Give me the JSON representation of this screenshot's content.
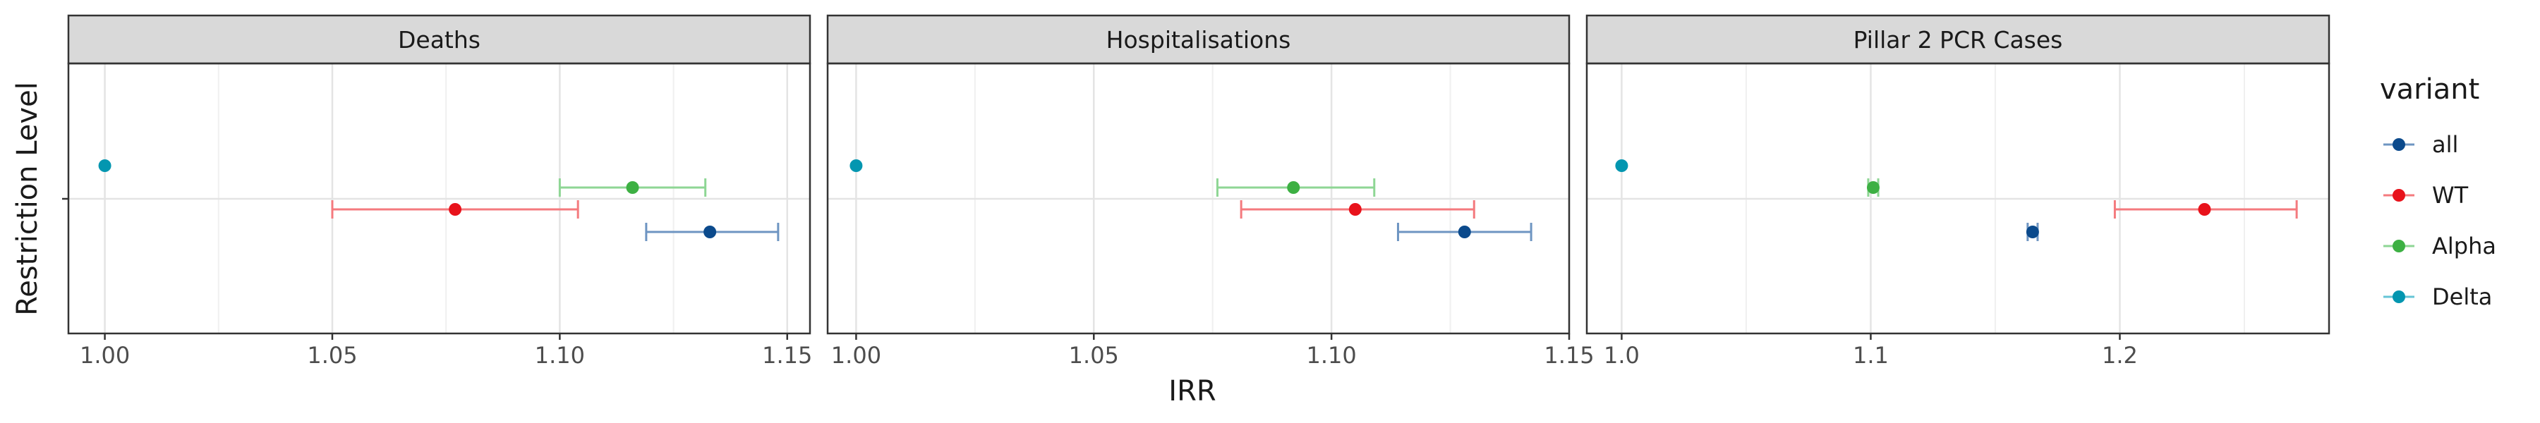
{
  "chart_data": {
    "type": "scatter",
    "subtype": "point-range-facets",
    "xlabel": "IRR",
    "ylabel": "Restriction Level",
    "grid": true,
    "legend": {
      "title": "variant",
      "placement": "right",
      "entries": [
        {
          "name": "all",
          "color": "#0B4A8C"
        },
        {
          "name": "WT",
          "color": "#E8121B"
        },
        {
          "name": "Alpha",
          "color": "#3DB043"
        },
        {
          "name": "Delta",
          "color": "#0396B0"
        }
      ]
    },
    "panels": [
      {
        "title": "Deaths",
        "xlim": [
          0.992,
          1.155
        ],
        "xticks": [
          1.0,
          1.05,
          1.1,
          1.15
        ],
        "xtick_labels": [
          "1.00",
          "1.05",
          "1.10",
          "1.15"
        ],
        "points": [
          {
            "variant": "Delta",
            "estimate": 1.0,
            "lower": 1.0,
            "upper": 1.0
          },
          {
            "variant": "Alpha",
            "estimate": 1.116,
            "lower": 1.1,
            "upper": 1.132
          },
          {
            "variant": "WT",
            "estimate": 1.077,
            "lower": 1.05,
            "upper": 1.104
          },
          {
            "variant": "all",
            "estimate": 1.133,
            "lower": 1.119,
            "upper": 1.148
          }
        ]
      },
      {
        "title": "Hospitalisations",
        "xlim": [
          0.994,
          1.15
        ],
        "xticks": [
          1.0,
          1.05,
          1.1,
          1.15
        ],
        "xtick_labels": [
          "1.00",
          "1.05",
          "1.10",
          "1.15"
        ],
        "points": [
          {
            "variant": "Delta",
            "estimate": 1.0,
            "lower": 1.0,
            "upper": 1.0
          },
          {
            "variant": "Alpha",
            "estimate": 1.092,
            "lower": 1.076,
            "upper": 1.109
          },
          {
            "variant": "WT",
            "estimate": 1.105,
            "lower": 1.081,
            "upper": 1.13
          },
          {
            "variant": "all",
            "estimate": 1.128,
            "lower": 1.114,
            "upper": 1.142
          }
        ]
      },
      {
        "title": "Pillar 2 PCR Cases",
        "xlim": [
          0.986,
          1.284
        ],
        "xticks": [
          1.0,
          1.1,
          1.2
        ],
        "xtick_labels": [
          "1.0",
          "1.1",
          "1.2"
        ],
        "points": [
          {
            "variant": "Delta",
            "estimate": 1.0,
            "lower": 1.0,
            "upper": 1.0
          },
          {
            "variant": "Alpha",
            "estimate": 1.101,
            "lower": 1.099,
            "upper": 1.103
          },
          {
            "variant": "WT",
            "estimate": 1.234,
            "lower": 1.198,
            "upper": 1.271
          },
          {
            "variant": "all",
            "estimate": 1.165,
            "lower": 1.163,
            "upper": 1.167
          }
        ]
      }
    ]
  }
}
